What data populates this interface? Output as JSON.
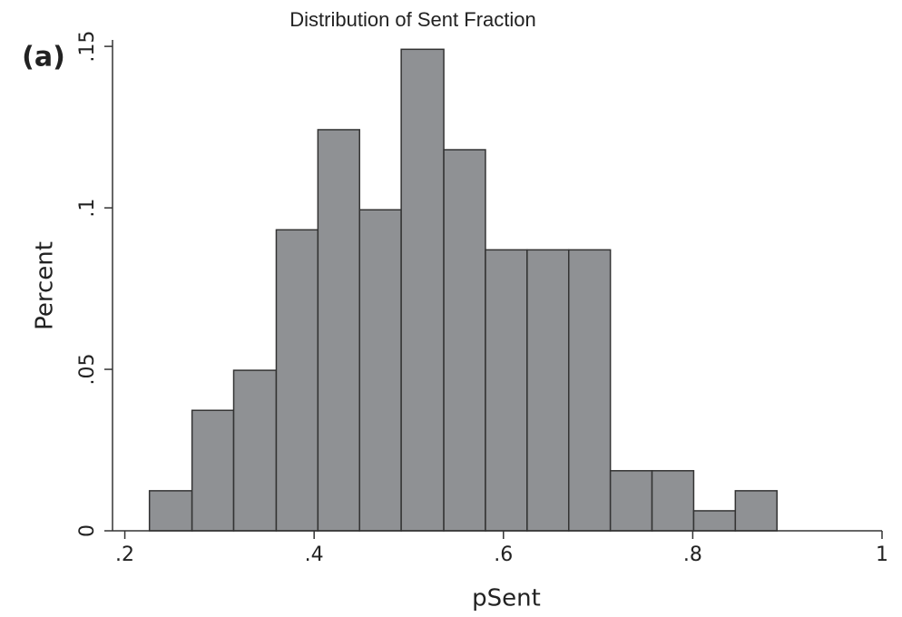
{
  "chart_data": {
    "type": "histogram",
    "title": "Distribution of Sent Fraction",
    "annotation": "(a)",
    "x_label": "pSent",
    "y_label": "Percent",
    "bins": [
      0.226,
      0.271,
      0.315,
      0.36,
      0.404,
      0.448,
      0.492,
      0.537,
      0.581,
      0.625,
      0.669,
      0.713,
      0.757,
      0.801,
      0.845,
      0.889
    ],
    "values": [
      0.0124,
      0.0373,
      0.0497,
      0.0932,
      0.1242,
      0.0994,
      0.1491,
      0.118,
      0.087,
      0.087,
      0.087,
      0.0186,
      0.0186,
      0.0062,
      0.0124
    ],
    "color": "#8f9194",
    "xlim": [
      0.187,
      1.0
    ],
    "xticks": [
      {
        "value": 0.2,
        "label": ".2"
      },
      {
        "value": 0.4,
        "label": ".4"
      },
      {
        "value": 0.6,
        "label": ".6"
      },
      {
        "value": 0.8,
        "label": ".8"
      },
      1
    ],
    "ylim": [
      0,
      0.152
    ],
    "yticks": [
      0,
      {
        "value": 0.05,
        "label": ".05"
      },
      {
        "value": 0.1,
        "label": ".1"
      },
      {
        "value": 0.15,
        "label": ".15"
      }
    ]
  }
}
